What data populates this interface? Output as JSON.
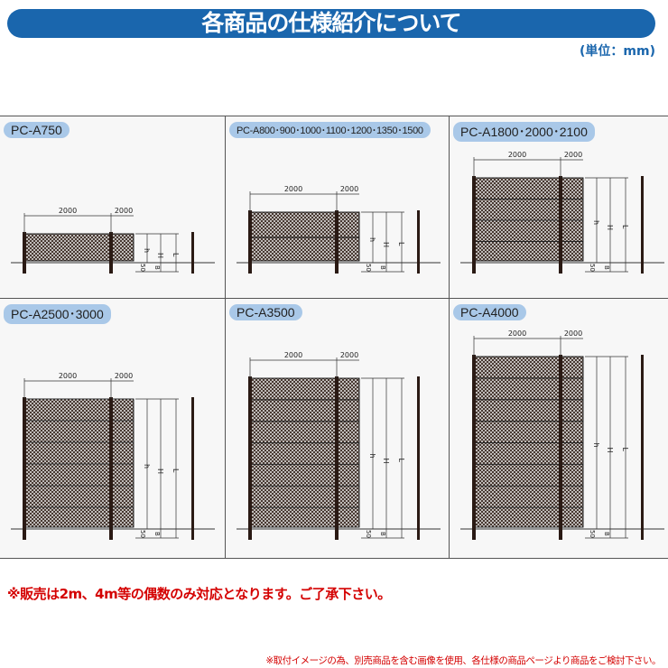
{
  "header": {
    "title": "各商品の仕様紹介について",
    "unit": "(単位：mm)"
  },
  "dims": {
    "span1": "2000",
    "span2": "2000",
    "h": "h",
    "H": "H",
    "L": "L",
    "fifty": "50",
    "B": "B"
  },
  "products": [
    {
      "label": "PC-A750"
    },
    {
      "label": "PC-A800･900･1000･1100･1200･1350･1500"
    },
    {
      "label": "PC-A1800･2000･2100"
    },
    {
      "label": "PC-A2500･3000"
    },
    {
      "label": "PC-A3500"
    },
    {
      "label": "PC-A4000"
    }
  ],
  "notes": {
    "sale": "※販売は2m、4m等の偶数のみ対応となります。ご了承下さい。",
    "disclaimer": "※取付イメージの為、別売商品を含む画像を使用、各仕様の商品ページより商品をご検討下さい。"
  },
  "colors": {
    "banner": "#1a66ad",
    "pill": "#a9c8e8",
    "note": "#d40000",
    "mesh": "#3a2a22"
  }
}
